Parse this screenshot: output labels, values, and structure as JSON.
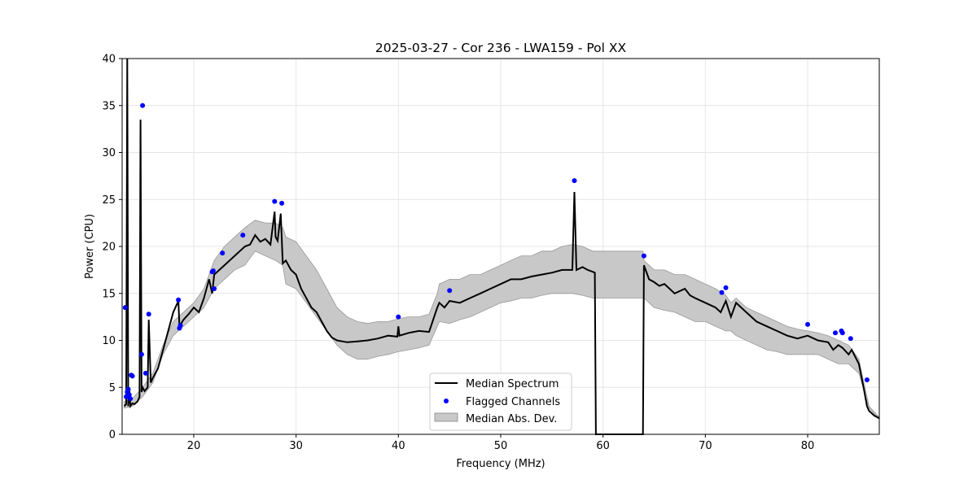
{
  "chart_data": {
    "type": "line",
    "title": "2025-03-27 - Cor 236 - LWA159 - Pol XX",
    "xlabel": "Frequency (MHz)",
    "ylabel": "Power (CPU)",
    "xlim": [
      13,
      87
    ],
    "ylim": [
      0,
      40
    ],
    "xticks": [
      20,
      30,
      40,
      50,
      60,
      70,
      80
    ],
    "yticks": [
      0,
      5,
      10,
      15,
      20,
      25,
      30,
      35,
      40
    ],
    "grid": true,
    "legend_position": "lower-center",
    "legend": [
      "Median Spectrum",
      "Flagged Channels",
      "Median Abs. Dev."
    ],
    "colors": {
      "median": "#000000",
      "flagged": "#0000ff",
      "mad_fill": "#c8c8c8",
      "mad_edge": "#999999",
      "grid": "#e6e6e6"
    },
    "series": [
      {
        "name": "Median Spectrum",
        "x": [
          13.2,
          13.4,
          13.5,
          13.6,
          13.7,
          13.8,
          14.0,
          14.2,
          14.5,
          14.7,
          14.8,
          14.9,
          15.0,
          15.2,
          15.5,
          15.6,
          15.8,
          16.0,
          16.5,
          17.0,
          17.5,
          18.0,
          18.5,
          18.6,
          19.0,
          19.5,
          20.0,
          20.5,
          21.0,
          21.5,
          21.8,
          22.0,
          22.5,
          23.0,
          23.5,
          24.0,
          24.5,
          25.0,
          25.5,
          26.0,
          26.5,
          27.0,
          27.5,
          27.9,
          28.0,
          28.2,
          28.5,
          28.7,
          29.0,
          29.5,
          30.0,
          30.5,
          31.0,
          31.5,
          32.0,
          32.5,
          33.0,
          33.5,
          34.0,
          35.0,
          36.0,
          37.0,
          38.0,
          39.0,
          39.9,
          40.0,
          40.1,
          41.0,
          42.0,
          43.0,
          43.8,
          44.0,
          44.5,
          45.0,
          46.0,
          47.0,
          48.0,
          49.0,
          50.0,
          51.0,
          52.0,
          53.0,
          54.0,
          55.0,
          56.0,
          57.0,
          57.2,
          57.4,
          58.0,
          58.5,
          59.0,
          59.2,
          59.3,
          63.9,
          64.0,
          64.5,
          65.0,
          65.5,
          66.0,
          66.5,
          67.0,
          68.0,
          68.5,
          69.0,
          70.0,
          71.0,
          71.5,
          72.0,
          72.5,
          73.0,
          74.0,
          75.0,
          76.0,
          77.0,
          78.0,
          79.0,
          80.0,
          81.0,
          82.0,
          82.5,
          83.0,
          83.4,
          84.0,
          84.3,
          85.0,
          85.5,
          85.8,
          86.0,
          86.5,
          87.0
        ],
        "y": [
          3.0,
          3.2,
          40.0,
          3.0,
          5.0,
          3.0,
          3.3,
          3.2,
          3.5,
          4.0,
          33.5,
          4.5,
          5.0,
          4.6,
          5.0,
          12.2,
          5.5,
          6.0,
          7.0,
          9.0,
          11.0,
          13.0,
          14.2,
          11.5,
          12.2,
          12.8,
          13.5,
          13.0,
          14.5,
          16.5,
          15.0,
          17.0,
          17.5,
          18.0,
          18.5,
          19.0,
          19.5,
          20.0,
          20.2,
          21.2,
          20.5,
          20.8,
          20.2,
          23.7,
          21.0,
          20.6,
          23.5,
          18.2,
          18.5,
          17.5,
          17.0,
          15.5,
          14.5,
          13.5,
          13.0,
          12.0,
          11.0,
          10.3,
          10.0,
          9.8,
          9.9,
          10.0,
          10.2,
          10.5,
          10.4,
          11.5,
          10.5,
          10.8,
          11.0,
          10.9,
          13.5,
          14.0,
          13.5,
          14.2,
          14.0,
          14.5,
          15.0,
          15.5,
          16.0,
          16.5,
          16.5,
          16.8,
          17.0,
          17.2,
          17.5,
          17.5,
          25.8,
          17.5,
          17.8,
          17.5,
          17.3,
          17.2,
          0.0,
          0.0,
          18.0,
          16.5,
          16.2,
          15.8,
          16.0,
          15.5,
          15.0,
          15.5,
          14.8,
          14.5,
          14.0,
          13.5,
          13.0,
          14.2,
          12.5,
          14.0,
          13.0,
          12.0,
          11.5,
          11.0,
          10.5,
          10.2,
          10.5,
          10.0,
          9.8,
          9.0,
          9.5,
          9.2,
          8.5,
          9.0,
          7.5,
          4.8,
          3.0,
          2.5,
          2.0,
          1.7
        ]
      },
      {
        "name": "Flagged Channels",
        "x": [
          13.3,
          13.4,
          13.5,
          13.6,
          13.7,
          13.8,
          13.9,
          14.0,
          14.9,
          15.0,
          15.3,
          15.6,
          18.5,
          18.6,
          18.7,
          21.8,
          21.9,
          22.0,
          22.8,
          24.8,
          27.9,
          28.6,
          40.0,
          45.0,
          57.2,
          64.0,
          71.6,
          72.0,
          80.0,
          82.7,
          83.3,
          83.4,
          84.2,
          85.8
        ],
        "y": [
          13.5,
          4.0,
          4.5,
          4.8,
          4.2,
          3.8,
          6.3,
          6.2,
          8.5,
          35.0,
          6.5,
          12.8,
          14.3,
          11.3,
          11.6,
          17.3,
          17.4,
          15.5,
          19.3,
          21.2,
          24.8,
          24.6,
          12.5,
          15.3,
          27.0,
          19.0,
          15.1,
          15.6,
          11.7,
          10.8,
          11.0,
          10.8,
          10.2,
          5.8
        ]
      },
      {
        "name": "Median Abs. Dev.",
        "x": [
          13.2,
          14.0,
          15.0,
          16.0,
          17.0,
          18.0,
          19.0,
          20.0,
          21.0,
          22.0,
          23.0,
          24.0,
          25.0,
          26.0,
          27.0,
          28.0,
          28.7,
          29.0,
          30.0,
          31.0,
          32.0,
          33.0,
          34.0,
          35.0,
          36.0,
          37.0,
          38.0,
          39.0,
          40.0,
          41.0,
          42.0,
          43.0,
          43.8,
          44.0,
          45.0,
          46.0,
          47.0,
          48.0,
          49.0,
          50.0,
          51.0,
          52.0,
          53.0,
          54.0,
          55.0,
          56.0,
          57.0,
          58.0,
          59.0,
          59.3,
          63.9,
          64.0,
          65.0,
          66.0,
          67.0,
          68.0,
          69.0,
          70.0,
          71.0,
          72.0,
          72.5,
          73.0,
          74.0,
          75.0,
          76.0,
          77.0,
          78.0,
          79.0,
          80.0,
          81.0,
          82.0,
          83.0,
          84.0,
          85.0,
          86.0,
          87.0
        ],
        "upper": [
          3.5,
          3.8,
          5.0,
          6.5,
          9.5,
          12.0,
          13.0,
          14.0,
          15.5,
          18.5,
          20.0,
          21.0,
          22.0,
          22.8,
          22.5,
          22.5,
          22.0,
          21.0,
          20.5,
          19.0,
          17.5,
          15.5,
          13.5,
          12.5,
          12.0,
          11.8,
          12.0,
          12.0,
          12.3,
          12.5,
          12.5,
          12.8,
          15.0,
          16.0,
          16.5,
          16.5,
          17.0,
          17.0,
          17.5,
          18.0,
          18.5,
          19.0,
          19.0,
          19.5,
          19.5,
          20.0,
          20.2,
          20.0,
          19.5,
          19.5,
          19.5,
          18.5,
          17.5,
          17.5,
          17.0,
          17.0,
          16.5,
          16.0,
          15.5,
          14.8,
          14.0,
          14.5,
          13.5,
          13.0,
          12.5,
          12.0,
          11.5,
          11.2,
          11.0,
          10.8,
          10.5,
          10.0,
          9.5,
          8.0,
          3.0,
          1.8
        ],
        "lower": [
          2.8,
          3.0,
          4.0,
          5.5,
          8.5,
          10.5,
          11.5,
          12.5,
          13.5,
          15.5,
          16.5,
          17.5,
          18.0,
          19.5,
          19.0,
          18.5,
          18.0,
          16.0,
          15.5,
          14.0,
          12.5,
          11.0,
          9.5,
          8.5,
          8.0,
          8.0,
          8.3,
          8.5,
          8.8,
          9.0,
          9.2,
          9.5,
          11.5,
          12.0,
          11.8,
          12.2,
          12.5,
          13.0,
          13.5,
          14.0,
          14.2,
          14.5,
          14.5,
          14.8,
          15.0,
          15.0,
          15.0,
          14.8,
          14.5,
          14.5,
          14.5,
          14.5,
          13.5,
          13.2,
          13.0,
          12.5,
          12.0,
          12.0,
          11.5,
          11.0,
          11.0,
          10.5,
          10.0,
          9.5,
          9.0,
          8.8,
          8.5,
          8.5,
          8.5,
          8.5,
          8.0,
          7.5,
          7.5,
          6.5,
          2.8,
          1.6
        ]
      }
    ]
  }
}
